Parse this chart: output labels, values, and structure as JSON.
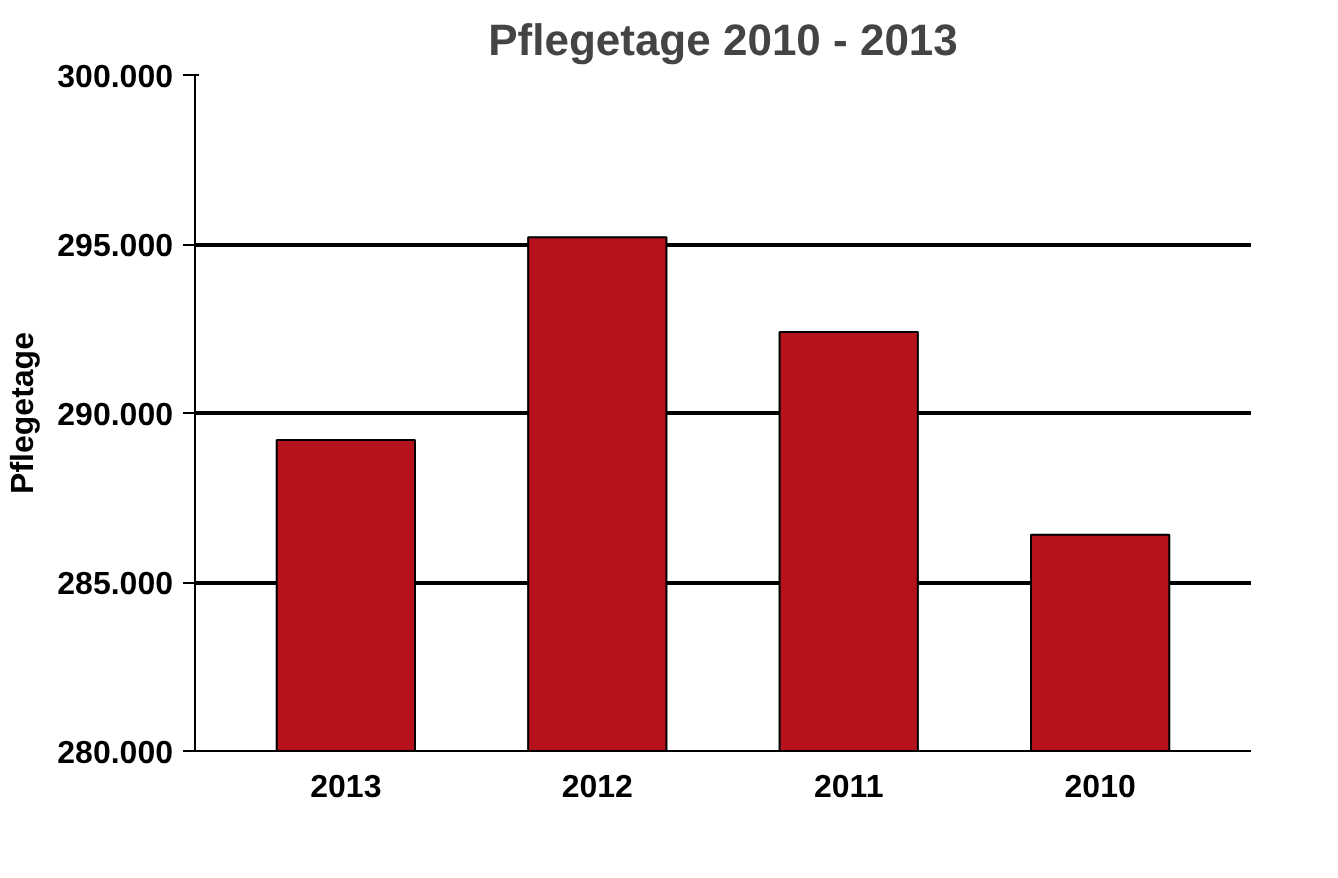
{
  "chart_data": {
    "type": "bar",
    "title": "Pflegetage 2010 - 2013",
    "ylabel": "Pflegetage",
    "categories": [
      "2013",
      "2012",
      "2011",
      "2010"
    ],
    "values": [
      289200,
      295200,
      292400,
      286400
    ],
    "color": "#b5121b",
    "ylim": [
      280000,
      300000
    ],
    "yticks": [
      {
        "value": 280000,
        "label": "280.000"
      },
      {
        "value": 285000,
        "label": "285.000"
      },
      {
        "value": 290000,
        "label": "290.000"
      },
      {
        "value": 295000,
        "label": "295.000"
      },
      {
        "value": 300000,
        "label": "300.000"
      }
    ],
    "grid": "y"
  }
}
